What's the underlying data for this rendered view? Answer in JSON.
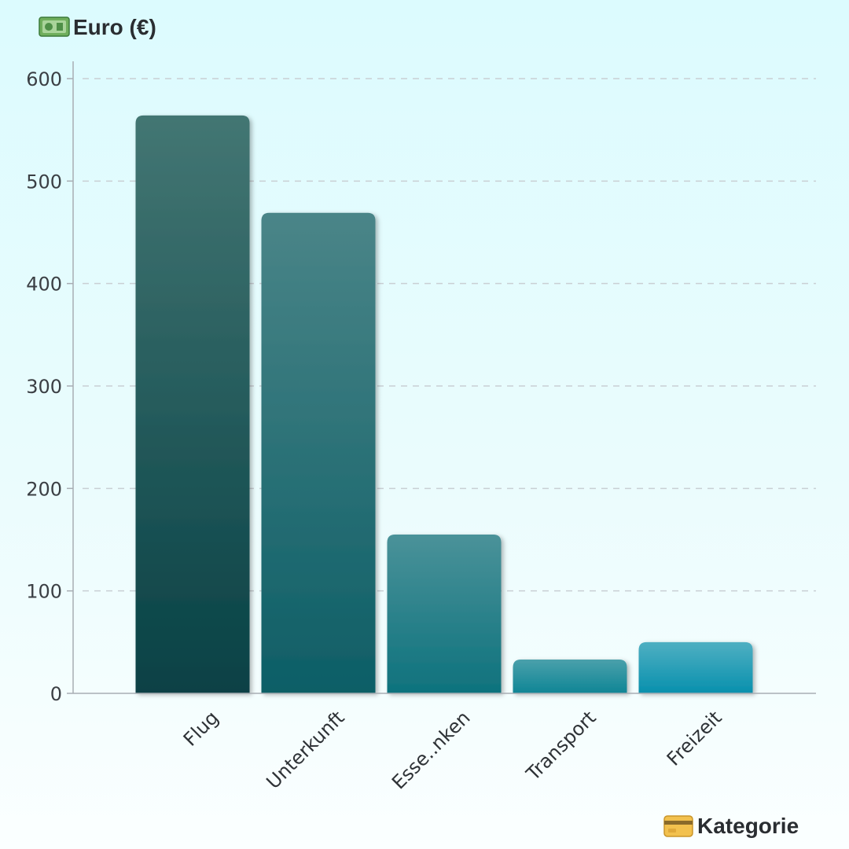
{
  "chart_data": {
    "type": "bar",
    "ylabel": "Euro (€)",
    "xlabel": "Kategorie",
    "ylabel_icon": "banknote-icon",
    "xlabel_icon": "credit-card-icon",
    "categories": [
      "Flug",
      "Unterkunft",
      "Esse..nken",
      "Transport",
      "Freizeit"
    ],
    "values": [
      564,
      469,
      155,
      33,
      50
    ],
    "ylim": [
      0,
      600
    ],
    "yticks": [
      0,
      100,
      200,
      300,
      400,
      500,
      600
    ],
    "grid": true,
    "colors": {
      "Flug": [
        "#437673",
        "#084145"
      ],
      "Unterkunft": [
        "#4a8588",
        "#0d5e66"
      ],
      "Esse..nken": [
        "#4a9299",
        "#0e727d"
      ],
      "Transport": [
        "#4aa0ab",
        "#0f8595"
      ],
      "Freizeit": [
        "#4fafc2",
        "#0890ad"
      ]
    }
  }
}
